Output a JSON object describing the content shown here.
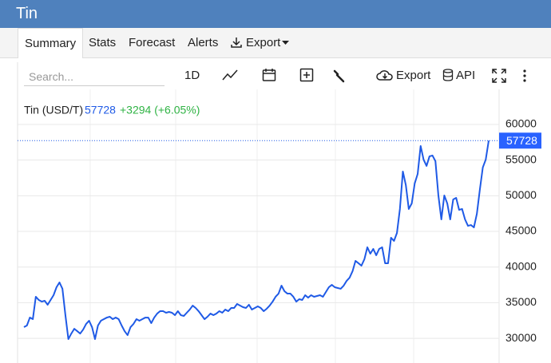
{
  "header": {
    "title": "Tin"
  },
  "tabs": [
    "Summary",
    "Stats",
    "Forecast",
    "Alerts",
    "Export"
  ],
  "toolbar": {
    "search_placeholder": "Search...",
    "interval": "1D",
    "export": "Export",
    "api": "API"
  },
  "chart_data": {
    "type": "line",
    "title": "Tin (USD/T)",
    "last": 57728,
    "change": "+3294 (+6.05%)",
    "color": "#1f5ae6",
    "change_color": "#2fb344",
    "grid": true,
    "ylim": [
      26540,
      64920
    ],
    "yticks": [
      30000,
      35000,
      40000,
      45000,
      50000,
      55000,
      60000
    ],
    "values": [
      31570,
      31800,
      32910,
      32690,
      35830,
      35380,
      35150,
      35270,
      34710,
      35380,
      36050,
      37170,
      37840,
      36950,
      33250,
      29890,
      30670,
      31340,
      31010,
      30670,
      31230,
      32020,
      32470,
      31570,
      29890,
      31800,
      32470,
      32690,
      32910,
      33030,
      32690,
      32910,
      32690,
      31800,
      31010,
      30450,
      31570,
      32020,
      32690,
      32470,
      32690,
      32910,
      32910,
      32130,
      32910,
      33470,
      33810,
      33810,
      33590,
      33700,
      33590,
      33250,
      33810,
      33250,
      33140,
      33590,
      34030,
      34590,
      34260,
      33810,
      33250,
      32690,
      33030,
      33470,
      33250,
      33470,
      33810,
      33590,
      34030,
      33810,
      34260,
      34260,
      34820,
      34590,
      34370,
      34260,
      34710,
      34030,
      34260,
      34480,
      34260,
      33810,
      34150,
      34590,
      35150,
      35830,
      36270,
      37390,
      36610,
      36270,
      36270,
      35830,
      35150,
      35490,
      35380,
      36050,
      35710,
      36050,
      35830,
      35940,
      36050,
      35830,
      36500,
      37170,
      37500,
      37170,
      37060,
      36950,
      37390,
      38060,
      38510,
      39410,
      40860,
      40530,
      40190,
      41090,
      42770,
      41870,
      42540,
      41650,
      42540,
      42770,
      40530,
      40530,
      44110,
      43660,
      44780,
      48140,
      53400,
      51500,
      48140,
      48920,
      51720,
      53060,
      56980,
      55070,
      54180,
      55530,
      55640,
      54850,
      50040,
      46680,
      50040,
      48920,
      46680,
      49480,
      49700,
      48020,
      48140,
      46680,
      45780,
      45890,
      45560,
      47470,
      50830,
      53960,
      55070,
      57728
    ]
  }
}
